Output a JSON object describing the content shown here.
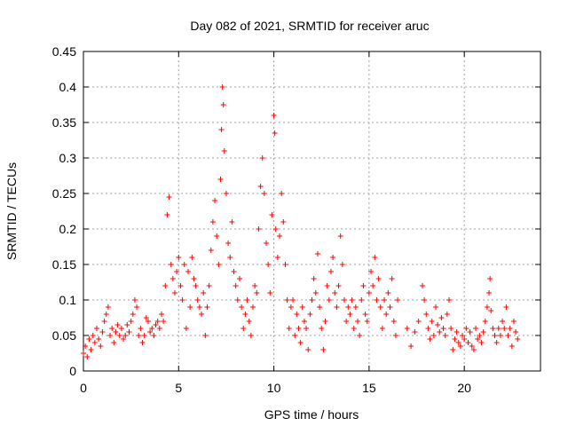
{
  "chart_data": {
    "type": "scatter",
    "title": "Day 082 of 2021, SRMTID for receiver aruc",
    "xlabel": "GPS time / hours",
    "ylabel": "SRMTID / TECUs",
    "xlim": [
      0,
      24
    ],
    "ylim": [
      0,
      0.45
    ],
    "grid": true,
    "marker": "+",
    "color": "#ff0000",
    "x_ticks": [
      {
        "value": 0,
        "label": "0"
      },
      {
        "value": 5,
        "label": "5"
      },
      {
        "value": 10,
        "label": "10"
      },
      {
        "value": 15,
        "label": "15"
      },
      {
        "value": 20,
        "label": "20"
      }
    ],
    "y_ticks": [
      {
        "value": 0,
        "label": "0"
      },
      {
        "value": 0.05,
        "label": "0.05"
      },
      {
        "value": 0.1,
        "label": "0.1"
      },
      {
        "value": 0.15,
        "label": "0.15"
      },
      {
        "value": 0.2,
        "label": "0.2"
      },
      {
        "value": 0.25,
        "label": "0.25"
      },
      {
        "value": 0.3,
        "label": "0.3"
      },
      {
        "value": 0.35,
        "label": "0.35"
      },
      {
        "value": 0.4,
        "label": "0.4"
      },
      {
        "value": 0.45,
        "label": "0.45"
      }
    ],
    "series": [
      {
        "name": "SRMTID",
        "points": [
          [
            0.0,
            0.025
          ],
          [
            0.1,
            0.035
          ],
          [
            0.2,
            0.02
          ],
          [
            0.3,
            0.045
          ],
          [
            0.4,
            0.03
          ],
          [
            0.5,
            0.05
          ],
          [
            0.6,
            0.04
          ],
          [
            0.7,
            0.06
          ],
          [
            0.8,
            0.045
          ],
          [
            0.9,
            0.035
          ],
          [
            1.0,
            0.055
          ],
          [
            1.1,
            0.07
          ],
          [
            1.2,
            0.08
          ],
          [
            1.3,
            0.09
          ],
          [
            1.4,
            0.05
          ],
          [
            1.5,
            0.06
          ],
          [
            1.6,
            0.04
          ],
          [
            1.7,
            0.055
          ],
          [
            1.8,
            0.065
          ],
          [
            1.9,
            0.05
          ],
          [
            2.0,
            0.06
          ],
          [
            2.1,
            0.045
          ],
          [
            2.2,
            0.05
          ],
          [
            2.3,
            0.065
          ],
          [
            2.4,
            0.055
          ],
          [
            2.5,
            0.07
          ],
          [
            2.6,
            0.08
          ],
          [
            2.7,
            0.1
          ],
          [
            2.8,
            0.09
          ],
          [
            2.9,
            0.05
          ],
          [
            3.0,
            0.06
          ],
          [
            3.1,
            0.04
          ],
          [
            3.2,
            0.05
          ],
          [
            3.3,
            0.075
          ],
          [
            3.4,
            0.07
          ],
          [
            3.5,
            0.055
          ],
          [
            3.6,
            0.06
          ],
          [
            3.7,
            0.05
          ],
          [
            3.8,
            0.065
          ],
          [
            3.9,
            0.07
          ],
          [
            4.0,
            0.06
          ],
          [
            4.1,
            0.08
          ],
          [
            4.2,
            0.07
          ],
          [
            4.3,
            0.12
          ],
          [
            4.4,
            0.22
          ],
          [
            4.5,
            0.245
          ],
          [
            4.6,
            0.15
          ],
          [
            4.7,
            0.13
          ],
          [
            4.8,
            0.11
          ],
          [
            4.9,
            0.14
          ],
          [
            5.0,
            0.16
          ],
          [
            5.1,
            0.12
          ],
          [
            5.2,
            0.1
          ],
          [
            5.3,
            0.15
          ],
          [
            5.4,
            0.06
          ],
          [
            5.5,
            0.14
          ],
          [
            5.6,
            0.09
          ],
          [
            5.7,
            0.16
          ],
          [
            5.8,
            0.13
          ],
          [
            5.9,
            0.12
          ],
          [
            6.0,
            0.1
          ],
          [
            6.1,
            0.09
          ],
          [
            6.2,
            0.08
          ],
          [
            6.3,
            0.11
          ],
          [
            6.4,
            0.05
          ],
          [
            6.5,
            0.09
          ],
          [
            6.6,
            0.12
          ],
          [
            6.7,
            0.17
          ],
          [
            6.8,
            0.21
          ],
          [
            6.9,
            0.24
          ],
          [
            7.0,
            0.19
          ],
          [
            7.1,
            0.15
          ],
          [
            7.2,
            0.27
          ],
          [
            7.25,
            0.34
          ],
          [
            7.3,
            0.4
          ],
          [
            7.35,
            0.375
          ],
          [
            7.4,
            0.31
          ],
          [
            7.5,
            0.25
          ],
          [
            7.6,
            0.18
          ],
          [
            7.7,
            0.16
          ],
          [
            7.8,
            0.21
          ],
          [
            7.9,
            0.14
          ],
          [
            8.0,
            0.12
          ],
          [
            8.1,
            0.1
          ],
          [
            8.2,
            0.13
          ],
          [
            8.3,
            0.09
          ],
          [
            8.4,
            0.06
          ],
          [
            8.5,
            0.08
          ],
          [
            8.6,
            0.1
          ],
          [
            8.7,
            0.07
          ],
          [
            8.8,
            0.05
          ],
          [
            8.9,
            0.09
          ],
          [
            9.0,
            0.12
          ],
          [
            9.1,
            0.11
          ],
          [
            9.2,
            0.2
          ],
          [
            9.3,
            0.26
          ],
          [
            9.4,
            0.3
          ],
          [
            9.5,
            0.25
          ],
          [
            9.6,
            0.18
          ],
          [
            9.7,
            0.15
          ],
          [
            9.8,
            0.11
          ],
          [
            9.9,
            0.22
          ],
          [
            10.0,
            0.36
          ],
          [
            10.05,
            0.335
          ],
          [
            10.1,
            0.2
          ],
          [
            10.2,
            0.16
          ],
          [
            10.3,
            0.19
          ],
          [
            10.4,
            0.25
          ],
          [
            10.5,
            0.21
          ],
          [
            10.6,
            0.15
          ],
          [
            10.7,
            0.1
          ],
          [
            10.8,
            0.06
          ],
          [
            10.9,
            0.09
          ],
          [
            11.0,
            0.1
          ],
          [
            11.1,
            0.05
          ],
          [
            11.2,
            0.08
          ],
          [
            11.3,
            0.06
          ],
          [
            11.4,
            0.04
          ],
          [
            11.5,
            0.09
          ],
          [
            11.6,
            0.07
          ],
          [
            11.7,
            0.06
          ],
          [
            11.8,
            0.03
          ],
          [
            11.9,
            0.08
          ],
          [
            12.0,
            0.1
          ],
          [
            12.1,
            0.13
          ],
          [
            12.2,
            0.11
          ],
          [
            12.3,
            0.165
          ],
          [
            12.4,
            0.09
          ],
          [
            12.5,
            0.06
          ],
          [
            12.6,
            0.03
          ],
          [
            12.7,
            0.07
          ],
          [
            12.8,
            0.12
          ],
          [
            12.9,
            0.1
          ],
          [
            13.0,
            0.14
          ],
          [
            13.1,
            0.16
          ],
          [
            13.2,
            0.11
          ],
          [
            13.3,
            0.09
          ],
          [
            13.4,
            0.12
          ],
          [
            13.5,
            0.19
          ],
          [
            13.6,
            0.15
          ],
          [
            13.7,
            0.1
          ],
          [
            13.8,
            0.07
          ],
          [
            13.9,
            0.09
          ],
          [
            14.0,
            0.08
          ],
          [
            14.1,
            0.1
          ],
          [
            14.2,
            0.06
          ],
          [
            14.3,
            0.09
          ],
          [
            14.4,
            0.07
          ],
          [
            14.5,
            0.05
          ],
          [
            14.6,
            0.1
          ],
          [
            14.7,
            0.12
          ],
          [
            14.8,
            0.08
          ],
          [
            14.9,
            0.07
          ],
          [
            15.0,
            0.11
          ],
          [
            15.1,
            0.14
          ],
          [
            15.2,
            0.12
          ],
          [
            15.3,
            0.16
          ],
          [
            15.4,
            0.1
          ],
          [
            15.5,
            0.13
          ],
          [
            15.6,
            0.09
          ],
          [
            15.7,
            0.06
          ],
          [
            15.8,
            0.1
          ],
          [
            15.9,
            0.08
          ],
          [
            16.0,
            0.11
          ],
          [
            16.1,
            0.09
          ],
          [
            16.2,
            0.13
          ],
          [
            16.3,
            0.07
          ],
          [
            16.4,
            0.05
          ],
          [
            16.5,
            0.1
          ],
          [
            17.0,
            0.06
          ],
          [
            17.2,
            0.035
          ],
          [
            17.4,
            0.055
          ],
          [
            17.6,
            0.07
          ],
          [
            17.8,
            0.12
          ],
          [
            17.9,
            0.1
          ],
          [
            18.0,
            0.08
          ],
          [
            18.1,
            0.06
          ],
          [
            18.2,
            0.045
          ],
          [
            18.3,
            0.07
          ],
          [
            18.4,
            0.05
          ],
          [
            18.5,
            0.09
          ],
          [
            18.6,
            0.065
          ],
          [
            18.7,
            0.055
          ],
          [
            18.8,
            0.075
          ],
          [
            18.9,
            0.06
          ],
          [
            19.0,
            0.05
          ],
          [
            19.1,
            0.08
          ],
          [
            19.2,
            0.1
          ],
          [
            19.3,
            0.06
          ],
          [
            19.4,
            0.03
          ],
          [
            19.5,
            0.045
          ],
          [
            19.6,
            0.055
          ],
          [
            19.7,
            0.04
          ],
          [
            19.8,
            0.035
          ],
          [
            19.9,
            0.05
          ],
          [
            20.0,
            0.045
          ],
          [
            20.1,
            0.06
          ],
          [
            20.2,
            0.04
          ],
          [
            20.3,
            0.055
          ],
          [
            20.4,
            0.035
          ],
          [
            20.5,
            0.03
          ],
          [
            20.6,
            0.06
          ],
          [
            20.7,
            0.045
          ],
          [
            20.8,
            0.05
          ],
          [
            20.9,
            0.04
          ],
          [
            21.0,
            0.055
          ],
          [
            21.1,
            0.07
          ],
          [
            21.2,
            0.09
          ],
          [
            21.3,
            0.11
          ],
          [
            21.35,
            0.13
          ],
          [
            21.4,
            0.085
          ],
          [
            21.5,
            0.06
          ],
          [
            21.6,
            0.05
          ],
          [
            21.7,
            0.04
          ],
          [
            21.8,
            0.06
          ],
          [
            21.9,
            0.05
          ],
          [
            22.0,
            0.07
          ],
          [
            22.1,
            0.06
          ],
          [
            22.2,
            0.09
          ],
          [
            22.3,
            0.05
          ],
          [
            22.4,
            0.06
          ],
          [
            22.5,
            0.035
          ],
          [
            22.6,
            0.07
          ],
          [
            22.7,
            0.055
          ],
          [
            22.8,
            0.045
          ]
        ]
      }
    ]
  }
}
